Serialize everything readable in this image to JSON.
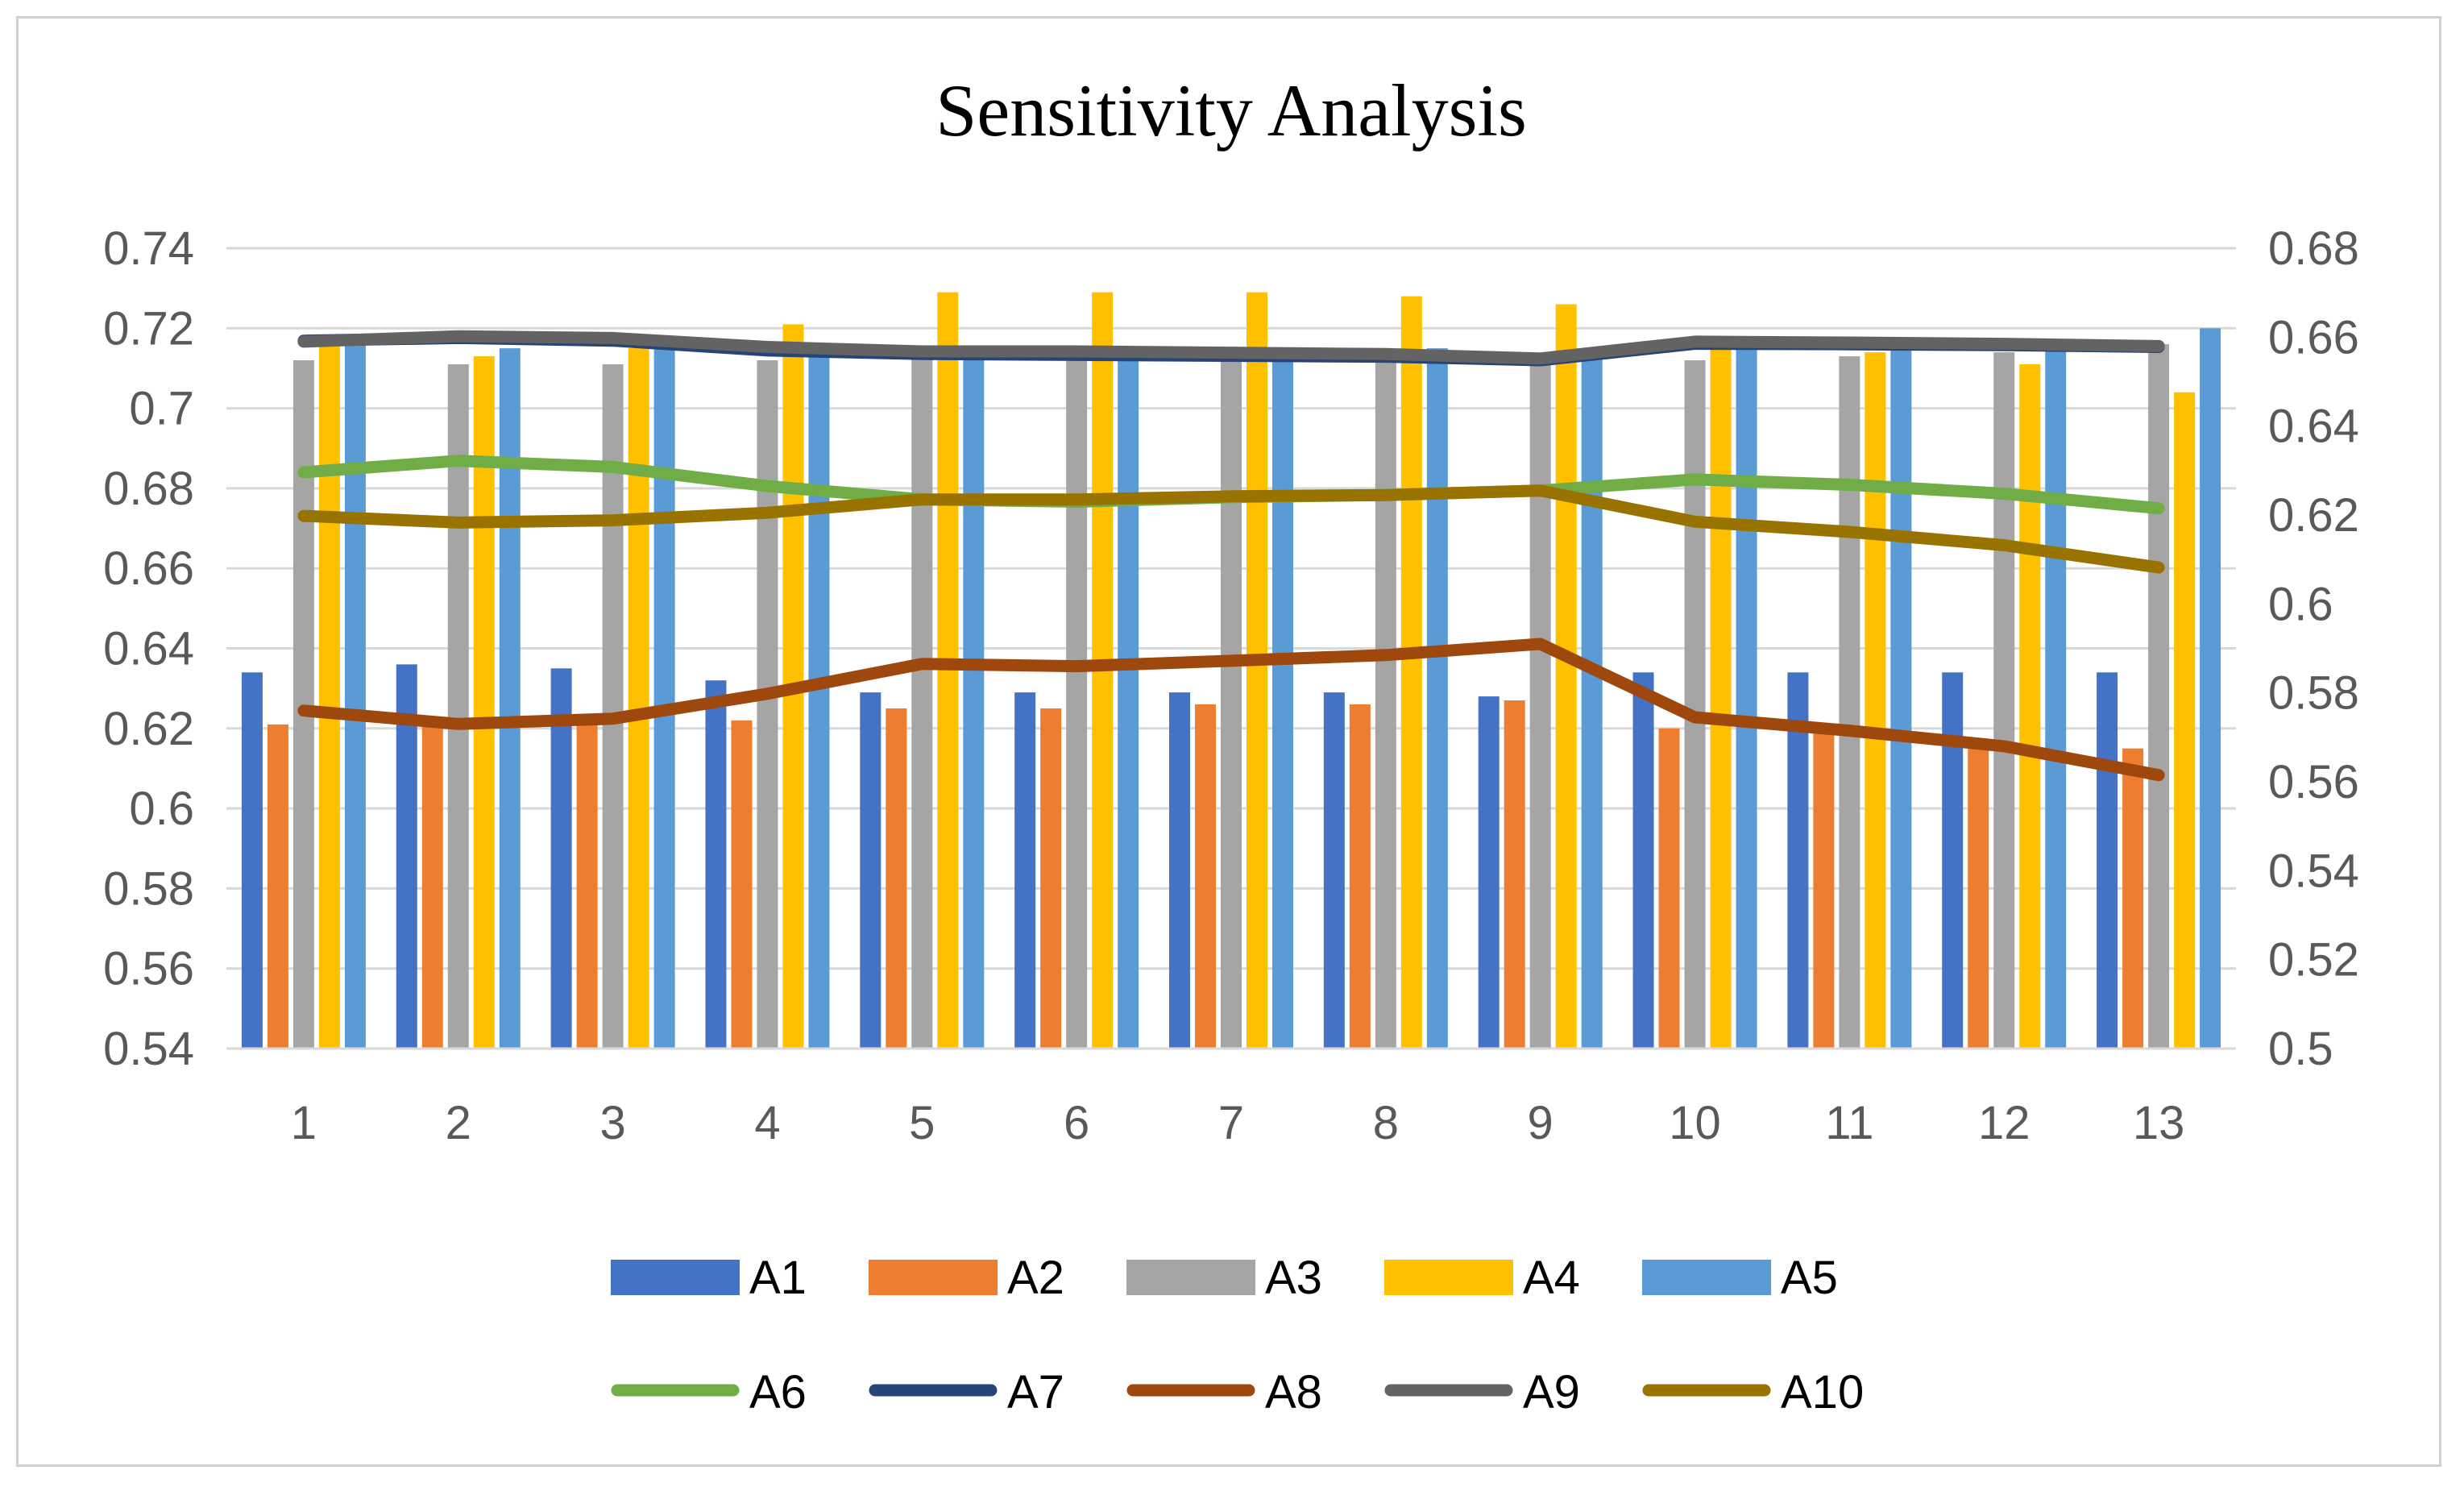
{
  "chart_data": {
    "type": "bar+line",
    "title": "Sensitivity Analysis",
    "xlabel": "",
    "ylabel": "",
    "categories": [
      "1",
      "2",
      "3",
      "4",
      "5",
      "6",
      "7",
      "8",
      "9",
      "10",
      "11",
      "12",
      "13"
    ],
    "y_left": {
      "min": 0.54,
      "max": 0.74,
      "step": 0.02,
      "tick_labels": [
        "0.54",
        "0.56",
        "0.58",
        "0.6",
        "0.62",
        "0.64",
        "0.66",
        "0.68",
        "0.7",
        "0.72",
        "0.74"
      ]
    },
    "y_right": {
      "min": 0.5,
      "max": 0.68,
      "step": 0.02,
      "tick_labels": [
        "0.5",
        "0.52",
        "0.54",
        "0.56",
        "0.58",
        "0.6",
        "0.62",
        "0.64",
        "0.66",
        "0.68"
      ]
    },
    "grid": true,
    "legend_position": "bottom",
    "bar_series": [
      {
        "name": "A1",
        "color": "#4472C4",
        "axis": "left",
        "values": [
          0.634,
          0.636,
          0.635,
          0.632,
          0.629,
          0.629,
          0.629,
          0.629,
          0.628,
          0.634,
          0.634,
          0.634,
          0.634
        ]
      },
      {
        "name": "A2",
        "color": "#ED7D31",
        "axis": "left",
        "values": [
          0.621,
          0.621,
          0.622,
          0.622,
          0.625,
          0.625,
          0.626,
          0.626,
          0.627,
          0.62,
          0.619,
          0.617,
          0.615
        ]
      },
      {
        "name": "A3",
        "color": "#A5A5A5",
        "axis": "left",
        "values": [
          0.712,
          0.711,
          0.711,
          0.712,
          0.713,
          0.713,
          0.713,
          0.713,
          0.713,
          0.712,
          0.713,
          0.714,
          0.716
        ]
      },
      {
        "name": "A4",
        "color": "#FFC000",
        "axis": "left",
        "values": [
          0.716,
          0.713,
          0.715,
          0.721,
          0.729,
          0.729,
          0.729,
          0.728,
          0.726,
          0.716,
          0.714,
          0.711,
          0.704
        ]
      },
      {
        "name": "A5",
        "color": "#5B9BD5",
        "axis": "left",
        "values": [
          0.718,
          0.715,
          0.716,
          0.716,
          0.715,
          0.715,
          0.715,
          0.715,
          0.715,
          0.717,
          0.717,
          0.717,
          0.72
        ]
      }
    ],
    "line_series": [
      {
        "name": "A6",
        "color": "#70AD47",
        "axis": "right",
        "values": [
          0.6296,
          0.6322,
          0.6308,
          0.6265,
          0.6235,
          0.623,
          0.624,
          0.6245,
          0.6255,
          0.628,
          0.6268,
          0.6248,
          0.6215
        ]
      },
      {
        "name": "A7",
        "color": "#264478",
        "axis": "right",
        "values": [
          0.6592,
          0.6598,
          0.6592,
          0.657,
          0.6562,
          0.656,
          0.6558,
          0.6556,
          0.6548,
          0.6585,
          0.6584,
          0.6582,
          0.6578
        ]
      },
      {
        "name": "A8",
        "color": "#9E480E",
        "axis": "right",
        "values": [
          0.576,
          0.573,
          0.5742,
          0.5798,
          0.5865,
          0.586,
          0.5872,
          0.5885,
          0.591,
          0.5745,
          0.5715,
          0.568,
          0.5615
        ]
      },
      {
        "name": "A9",
        "color": "#636363",
        "axis": "right",
        "values": [
          0.659,
          0.6602,
          0.6598,
          0.6578,
          0.6568,
          0.6568,
          0.6565,
          0.6562,
          0.6552,
          0.659,
          0.6588,
          0.6585,
          0.658
        ]
      },
      {
        "name": "A10",
        "color": "#997300",
        "axis": "right",
        "values": [
          0.6198,
          0.6183,
          0.6188,
          0.6205,
          0.6235,
          0.6235,
          0.6242,
          0.6245,
          0.6255,
          0.6185,
          0.6162,
          0.6132,
          0.6082
        ]
      }
    ]
  }
}
